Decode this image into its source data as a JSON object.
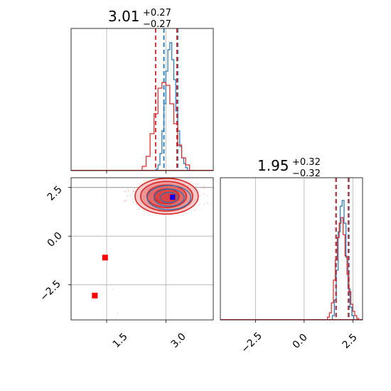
{
  "chart_data": [
    {
      "type": "histogram",
      "panel": "parameter-1-marginal",
      "title": {
        "value": "3.01",
        "plus": "+0.27",
        "minus": "−0.27"
      },
      "xlim": [
        0.6,
        4.2
      ],
      "grid": true,
      "series": [
        {
          "color": "#1f77b4",
          "bins": [
            [
              2.75,
              2.8,
              0.01
            ],
            [
              2.8,
              2.85,
              0.04
            ],
            [
              2.85,
              2.9,
              0.12
            ],
            [
              2.9,
              2.95,
              0.28
            ],
            [
              2.95,
              3.0,
              0.47
            ],
            [
              3.0,
              3.05,
              0.7
            ],
            [
              3.05,
              3.1,
              0.85
            ],
            [
              3.1,
              3.15,
              0.9
            ],
            [
              3.15,
              3.2,
              0.78
            ],
            [
              3.2,
              3.25,
              0.64
            ],
            [
              3.25,
              3.3,
              0.42
            ],
            [
              3.3,
              3.35,
              0.28
            ],
            [
              3.35,
              3.4,
              0.17
            ],
            [
              3.4,
              3.45,
              0.09
            ],
            [
              3.45,
              3.5,
              0.05
            ],
            [
              3.5,
              3.55,
              0.02
            ]
          ],
          "quantile_lines": [
            2.95,
            3.3
          ]
        },
        {
          "color": "#d62728",
          "bins": [
            [
              2.4,
              2.5,
              0.03
            ],
            [
              2.5,
              2.6,
              0.1
            ],
            [
              2.6,
              2.7,
              0.26
            ],
            [
              2.7,
              2.8,
              0.4
            ],
            [
              2.8,
              2.9,
              0.58
            ],
            [
              2.9,
              3.0,
              0.62
            ],
            [
              3.0,
              3.1,
              0.6
            ],
            [
              3.1,
              3.2,
              0.47
            ],
            [
              3.2,
              3.3,
              0.33
            ],
            [
              3.3,
              3.4,
              0.18
            ],
            [
              3.4,
              3.5,
              0.09
            ],
            [
              3.5,
              3.6,
              0.04
            ]
          ],
          "quantile_lines": [
            2.74,
            3.28
          ]
        }
      ]
    },
    {
      "type": "contour-2d",
      "panel": "joint-posterior",
      "xlim": [
        0.6,
        4.2
      ],
      "ylim": [
        -4.3,
        3.0
      ],
      "xticks": [
        "1.5",
        "3.0"
      ],
      "yticks": [
        "2.5",
        "0.0",
        "−2.5"
      ],
      "grid": true,
      "reference_lines": {
        "y": 2.5
      },
      "series": [
        {
          "color": "#d62728",
          "center": [
            3.02,
            2.05
          ],
          "contour_levels": 4,
          "filled": true
        },
        {
          "color": "#1f77b4",
          "center": [
            3.08,
            1.98
          ],
          "contour_levels": 3,
          "filled": false
        }
      ],
      "markers": [
        {
          "color": "#ff0000",
          "x": 1.46,
          "y": -1.1
        },
        {
          "color": "#ff0000",
          "x": 1.2,
          "y": -3.05
        },
        {
          "color": "#ff0000",
          "x": 3.17,
          "y": 2.0
        },
        {
          "color": "#0000ff",
          "x": 3.17,
          "y": 2.0
        }
      ],
      "outlier_points": [
        [
          1.66,
          -2.75
        ],
        [
          1.78,
          -3.95
        ]
      ]
    },
    {
      "type": "histogram",
      "panel": "parameter-2-marginal",
      "title": {
        "value": "1.95",
        "plus": "+0.32",
        "minus": "−0.32"
      },
      "xlim": [
        -4.3,
        3.0
      ],
      "xticks": [
        "−2.5",
        "0.0",
        "2.5"
      ],
      "grid": true,
      "series": [
        {
          "color": "#1f77b4",
          "bins": [
            [
              1.45,
              1.55,
              0.03
            ],
            [
              1.55,
              1.65,
              0.14
            ],
            [
              1.65,
              1.75,
              0.35
            ],
            [
              1.75,
              1.85,
              0.62
            ],
            [
              1.85,
              1.95,
              0.8
            ],
            [
              1.95,
              2.05,
              0.84
            ],
            [
              2.05,
              2.15,
              0.68
            ],
            [
              2.15,
              2.25,
              0.44
            ],
            [
              2.25,
              2.35,
              0.22
            ],
            [
              2.35,
              2.45,
              0.09
            ],
            [
              2.45,
              2.55,
              0.03
            ]
          ],
          "quantile_lines": [
            1.65,
            2.3
          ]
        },
        {
          "color": "#d62728",
          "bins": [
            [
              1.2,
              1.3,
              0.02
            ],
            [
              1.3,
              1.4,
              0.05
            ],
            [
              1.4,
              1.5,
              0.12
            ],
            [
              1.5,
              1.6,
              0.28
            ],
            [
              1.6,
              1.7,
              0.42
            ],
            [
              1.7,
              1.8,
              0.58
            ],
            [
              1.8,
              1.9,
              0.68
            ],
            [
              1.9,
              2.0,
              0.72
            ],
            [
              2.0,
              2.1,
              0.6
            ],
            [
              2.1,
              2.2,
              0.45
            ],
            [
              2.2,
              2.3,
              0.32
            ],
            [
              2.3,
              2.4,
              0.2
            ],
            [
              2.4,
              2.5,
              0.11
            ],
            [
              2.5,
              2.6,
              0.06
            ],
            [
              2.6,
              2.7,
              0.03
            ],
            [
              2.7,
              2.8,
              0.01
            ]
          ],
          "quantile_lines": [
            1.63,
            2.27
          ]
        }
      ]
    }
  ]
}
